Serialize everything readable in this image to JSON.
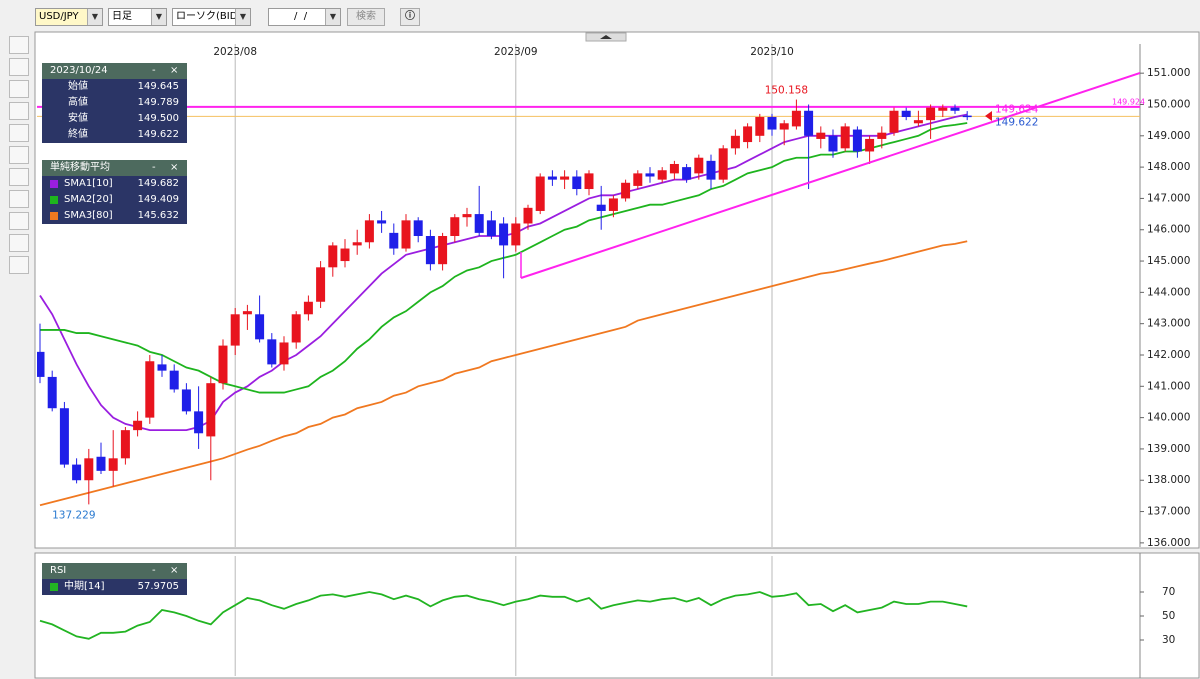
{
  "toolbar": {
    "symbol": "USD/JPY",
    "period": "日足",
    "chart_kind": "ローソク(BID)",
    "date": " /  /",
    "search": "検索"
  },
  "panel_buttons": [
    "-",
    "×"
  ],
  "info_panel": {
    "date": "2023/10/24",
    "rows": [
      {
        "label": "始値",
        "value": "149.645"
      },
      {
        "label": "高値",
        "value": "149.789"
      },
      {
        "label": "安値",
        "value": "149.500"
      },
      {
        "label": "終値",
        "value": "149.622"
      }
    ]
  },
  "sma_panel": {
    "title": "単純移動平均"
  },
  "chart_data": {
    "type": "candlestick",
    "categories": [
      null,
      null,
      null,
      null,
      null,
      null,
      null,
      null,
      null,
      null,
      null,
      null,
      null,
      null,
      null,
      null,
      "2023/08",
      null,
      null,
      null,
      null,
      null,
      null,
      null,
      null,
      null,
      null,
      null,
      null,
      null,
      null,
      null,
      null,
      null,
      null,
      null,
      null,
      null,
      null,
      "2023/09",
      null,
      null,
      null,
      null,
      null,
      null,
      null,
      null,
      null,
      null,
      null,
      null,
      null,
      null,
      null,
      null,
      null,
      null,
      null,
      null,
      "2023/10",
      null,
      null,
      null,
      null,
      null,
      null,
      null,
      null,
      null,
      null,
      null,
      null,
      null,
      null,
      null,
      null
    ],
    "open": [
      142.1,
      141.3,
      140.3,
      138.5,
      138.0,
      138.75,
      138.3,
      138.7,
      139.6,
      140.0,
      141.7,
      141.5,
      140.9,
      140.2,
      139.4,
      141.1,
      142.3,
      143.3,
      143.3,
      142.5,
      141.7,
      142.4,
      143.3,
      143.7,
      144.8,
      145.0,
      145.5,
      145.6,
      146.3,
      145.9,
      145.4,
      146.3,
      145.8,
      144.9,
      145.8,
      146.4,
      146.5,
      146.3,
      146.2,
      145.5,
      146.2,
      146.6,
      147.7,
      147.6,
      147.7,
      147.3,
      146.8,
      146.6,
      147.0,
      147.4,
      147.8,
      147.6,
      147.8,
      148.0,
      147.8,
      148.2,
      147.6,
      148.6,
      148.8,
      149.0,
      149.6,
      149.2,
      149.3,
      149.8,
      148.9,
      149.0,
      148.6,
      149.2,
      148.5,
      148.9,
      149.1,
      149.8,
      149.4,
      149.5,
      149.8,
      149.9,
      149.645
    ],
    "high": [
      143.0,
      141.5,
      140.5,
      138.7,
      139.0,
      139.2,
      139.6,
      139.7,
      140.2,
      142.0,
      142.0,
      141.7,
      141.1,
      141.0,
      141.3,
      142.5,
      143.5,
      143.6,
      143.9,
      142.7,
      142.6,
      143.4,
      143.9,
      145.0,
      145.6,
      145.7,
      146.0,
      146.5,
      146.6,
      146.2,
      146.5,
      146.4,
      146.0,
      145.9,
      146.5,
      146.7,
      147.4,
      146.6,
      146.4,
      146.4,
      146.8,
      147.8,
      147.9,
      147.9,
      147.9,
      147.9,
      147.4,
      147.1,
      147.6,
      147.9,
      148.0,
      148.0,
      148.2,
      148.1,
      148.4,
      148.4,
      148.7,
      149.2,
      149.4,
      149.7,
      149.7,
      149.5,
      150.158,
      150.0,
      149.3,
      149.2,
      149.4,
      149.3,
      149.0,
      149.3,
      149.9,
      149.9,
      149.8,
      150.0,
      150.0,
      150.0,
      149.789
    ],
    "low": [
      141.1,
      140.2,
      138.4,
      137.9,
      137.229,
      138.2,
      137.8,
      138.5,
      139.4,
      139.8,
      141.3,
      140.8,
      140.1,
      139.0,
      138.0,
      140.9,
      142.0,
      142.8,
      142.4,
      141.6,
      141.5,
      142.2,
      143.1,
      143.5,
      144.5,
      144.8,
      145.2,
      145.4,
      145.9,
      145.2,
      145.3,
      145.6,
      144.7,
      144.7,
      145.6,
      146.1,
      145.8,
      145.7,
      144.45,
      145.3,
      146.0,
      146.5,
      147.4,
      147.3,
      147.1,
      147.1,
      146.0,
      146.4,
      146.9,
      147.3,
      147.5,
      147.5,
      147.6,
      147.5,
      147.6,
      147.3,
      147.5,
      148.4,
      148.6,
      148.8,
      149.0,
      148.7,
      149.2,
      147.3,
      148.6,
      148.3,
      148.5,
      148.3,
      148.1,
      148.6,
      149.0,
      149.5,
      149.3,
      148.9,
      149.6,
      149.7,
      149.5
    ],
    "close": [
      141.3,
      140.3,
      138.5,
      138.0,
      138.7,
      138.3,
      138.7,
      139.6,
      139.9,
      141.8,
      141.5,
      140.9,
      140.2,
      139.5,
      141.1,
      142.3,
      143.3,
      143.4,
      142.5,
      141.7,
      142.4,
      143.3,
      143.7,
      144.8,
      145.5,
      145.4,
      145.6,
      146.3,
      146.2,
      145.4,
      146.3,
      145.8,
      144.9,
      145.8,
      146.4,
      146.5,
      145.9,
      145.8,
      145.5,
      146.2,
      146.7,
      147.7,
      147.6,
      147.7,
      147.3,
      147.8,
      146.6,
      147.0,
      147.5,
      147.8,
      147.7,
      147.9,
      148.1,
      147.6,
      148.3,
      147.6,
      148.6,
      149.0,
      149.3,
      149.6,
      149.2,
      149.4,
      149.8,
      149.0,
      149.1,
      148.5,
      149.3,
      148.5,
      148.9,
      149.1,
      149.8,
      149.6,
      149.5,
      149.9,
      149.9,
      149.8,
      149.622
    ],
    "up_color": "#e8141e",
    "down_color": "#1f1fe8",
    "series": [
      {
        "name": "SMA1[10]",
        "color": "#9a1ee0",
        "current": "149.682",
        "values": [
          143.9,
          143.3,
          142.5,
          141.7,
          141.0,
          140.4,
          140.0,
          139.8,
          139.7,
          139.6,
          139.6,
          139.6,
          139.6,
          139.7,
          139.9,
          140.5,
          140.8,
          141.0,
          141.3,
          141.5,
          141.8,
          142.0,
          142.3,
          142.6,
          143.0,
          143.4,
          143.8,
          144.2,
          144.6,
          144.9,
          145.2,
          145.3,
          145.4,
          145.5,
          145.6,
          145.7,
          145.8,
          145.8,
          145.8,
          145.9,
          146.1,
          146.2,
          146.4,
          146.6,
          146.8,
          147.0,
          147.1,
          147.1,
          147.2,
          147.3,
          147.4,
          147.5,
          147.6,
          147.6,
          147.7,
          147.8,
          147.9,
          148.0,
          148.2,
          148.4,
          148.6,
          148.8,
          148.9,
          149.0,
          149.0,
          149.0,
          149.0,
          149.0,
          149.0,
          149.0,
          149.1,
          149.2,
          149.3,
          149.4,
          149.5,
          149.6,
          149.682
        ]
      },
      {
        "name": "SMA2[20]",
        "color": "#1eb41e",
        "current": "149.409",
        "values": [
          142.8,
          142.8,
          142.8,
          142.7,
          142.7,
          142.6,
          142.5,
          142.4,
          142.3,
          142.1,
          142.0,
          141.8,
          141.6,
          141.5,
          141.3,
          141.1,
          141.0,
          140.9,
          140.8,
          140.8,
          140.8,
          140.9,
          141.0,
          141.3,
          141.5,
          141.8,
          142.2,
          142.5,
          142.9,
          143.2,
          143.4,
          143.7,
          144.0,
          144.2,
          144.5,
          144.7,
          144.8,
          145.0,
          145.1,
          145.2,
          145.4,
          145.6,
          145.8,
          146.0,
          146.1,
          146.3,
          146.4,
          146.5,
          146.6,
          146.7,
          146.8,
          146.8,
          146.9,
          147.0,
          147.1,
          147.3,
          147.4,
          147.6,
          147.8,
          147.9,
          148.0,
          148.2,
          148.3,
          148.3,
          148.4,
          148.4,
          148.5,
          148.5,
          148.6,
          148.7,
          148.8,
          148.9,
          149.0,
          149.2,
          149.3,
          149.35,
          149.409
        ]
      },
      {
        "name": "SMA3[80]",
        "color": "#f07820",
        "current": "145.632",
        "values": [
          137.2,
          137.3,
          137.4,
          137.5,
          137.6,
          137.7,
          137.8,
          137.9,
          138.0,
          138.1,
          138.2,
          138.3,
          138.4,
          138.5,
          138.6,
          138.7,
          138.84,
          138.98,
          139.1,
          139.26,
          139.4,
          139.5,
          139.7,
          139.8,
          140.0,
          140.1,
          140.3,
          140.4,
          140.5,
          140.7,
          140.8,
          141.0,
          141.1,
          141.2,
          141.4,
          141.5,
          141.6,
          141.8,
          141.9,
          142.0,
          142.1,
          142.2,
          142.3,
          142.4,
          142.5,
          142.6,
          142.7,
          142.8,
          142.9,
          143.1,
          143.2,
          143.3,
          143.4,
          143.5,
          143.6,
          143.7,
          143.8,
          143.9,
          144.0,
          144.1,
          144.2,
          144.3,
          144.4,
          144.5,
          144.6,
          144.65,
          144.74,
          144.83,
          144.92,
          145.0,
          145.1,
          145.2,
          145.3,
          145.4,
          145.5,
          145.55,
          145.632
        ]
      }
    ],
    "ylim": [
      135.9,
      151.9
    ],
    "yticks": [
      {
        "value": 136,
        "label": "136.000"
      },
      {
        "value": 137,
        "label": "137.000"
      },
      {
        "value": 138,
        "label": "138.000"
      },
      {
        "value": 139,
        "label": "139.000"
      },
      {
        "value": 140,
        "label": "140.000"
      },
      {
        "value": 141,
        "label": "141.000"
      },
      {
        "value": 142,
        "label": "142.000"
      },
      {
        "value": 143,
        "label": "143.000"
      },
      {
        "value": 144,
        "label": "144.000"
      },
      {
        "value": 145,
        "label": "145.000"
      },
      {
        "value": 146,
        "label": "146.000"
      },
      {
        "value": 147,
        "label": "147.000"
      },
      {
        "value": 148,
        "label": "148.000"
      },
      {
        "value": 149,
        "label": "149.000"
      },
      {
        "value": 150,
        "label": "150.000"
      },
      {
        "value": 151,
        "label": "151.000"
      }
    ],
    "hline": {
      "value": 149.924,
      "color": "#ff22ee"
    },
    "last_line_color": "#f5c060",
    "ask": 149.624,
    "rsi": {
      "title": "RSI",
      "name": "中期[14]",
      "current": "57.9705",
      "color": "#22b422",
      "ylim": [
        0,
        100
      ],
      "yticks": [
        30,
        50,
        70
      ],
      "values": [
        46,
        43,
        38,
        33,
        31,
        36,
        36,
        37,
        42,
        45,
        55,
        53,
        50,
        46,
        43,
        53,
        59,
        65,
        63,
        59,
        56,
        60,
        63,
        67,
        68,
        66,
        68,
        70,
        68,
        64,
        67,
        64,
        58,
        63,
        66,
        67,
        64,
        62,
        59,
        62,
        64,
        67,
        66,
        66,
        62,
        65,
        56,
        59,
        61,
        63,
        62,
        64,
        65,
        62,
        65,
        59,
        64,
        67,
        68,
        70,
        66,
        67,
        69,
        59,
        60,
        54,
        59,
        53,
        55,
        57,
        62,
        60,
        60,
        62,
        62,
        60,
        57.9705
      ]
    }
  }
}
